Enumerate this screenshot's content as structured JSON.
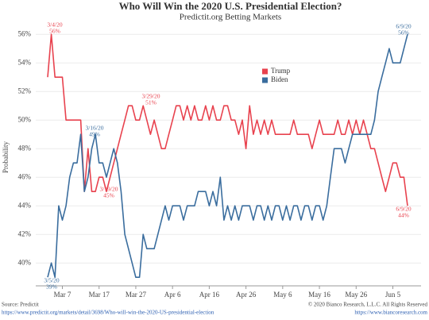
{
  "chart_data": {
    "type": "line",
    "title": "Who Will Win the 2020 U.S. Presidential Election?",
    "subtitle": "Predictit.org Betting Markets",
    "y_label": "Probability",
    "x": [
      "2020-03-03",
      "2020-03-04",
      "2020-03-05",
      "2020-03-06",
      "2020-03-07",
      "2020-03-08",
      "2020-03-09",
      "2020-03-10",
      "2020-03-11",
      "2020-03-12",
      "2020-03-13",
      "2020-03-14",
      "2020-03-15",
      "2020-03-16",
      "2020-03-17",
      "2020-03-18",
      "2020-03-19",
      "2020-03-20",
      "2020-03-21",
      "2020-03-22",
      "2020-03-23",
      "2020-03-24",
      "2020-03-25",
      "2020-03-26",
      "2020-03-27",
      "2020-03-28",
      "2020-03-29",
      "2020-03-30",
      "2020-03-31",
      "2020-04-01",
      "2020-04-02",
      "2020-04-03",
      "2020-04-04",
      "2020-04-05",
      "2020-04-06",
      "2020-04-07",
      "2020-04-08",
      "2020-04-09",
      "2020-04-10",
      "2020-04-11",
      "2020-04-12",
      "2020-04-13",
      "2020-04-14",
      "2020-04-15",
      "2020-04-16",
      "2020-04-17",
      "2020-04-18",
      "2020-04-19",
      "2020-04-20",
      "2020-04-21",
      "2020-04-22",
      "2020-04-23",
      "2020-04-24",
      "2020-04-25",
      "2020-04-26",
      "2020-04-27",
      "2020-04-28",
      "2020-04-29",
      "2020-04-30",
      "2020-05-01",
      "2020-05-02",
      "2020-05-03",
      "2020-05-04",
      "2020-05-05",
      "2020-05-06",
      "2020-05-07",
      "2020-05-08",
      "2020-05-09",
      "2020-05-10",
      "2020-05-11",
      "2020-05-12",
      "2020-05-13",
      "2020-05-14",
      "2020-05-15",
      "2020-05-16",
      "2020-05-17",
      "2020-05-18",
      "2020-05-19",
      "2020-05-20",
      "2020-05-21",
      "2020-05-22",
      "2020-05-23",
      "2020-05-24",
      "2020-05-25",
      "2020-05-26",
      "2020-05-27",
      "2020-05-28",
      "2020-05-29",
      "2020-05-30",
      "2020-05-31",
      "2020-06-01",
      "2020-06-02",
      "2020-06-03",
      "2020-06-04",
      "2020-06-05",
      "2020-06-06",
      "2020-06-07",
      "2020-06-08",
      "2020-06-09"
    ],
    "series": [
      {
        "name": "Trump",
        "color": "#e8424e",
        "values": [
          53,
          56,
          53,
          53,
          53,
          50,
          50,
          50,
          50,
          50,
          45,
          48,
          45,
          45,
          46,
          46,
          45,
          46,
          47,
          48,
          49,
          50,
          51,
          51,
          50,
          50,
          51,
          50,
          49,
          50,
          49,
          48,
          48,
          49,
          50,
          51,
          51,
          50,
          51,
          50,
          51,
          50,
          50,
          51,
          50,
          51,
          50,
          50,
          51,
          51,
          50,
          50,
          49,
          50,
          48,
          51,
          49,
          50,
          49,
          50,
          49,
          50,
          49,
          49,
          49,
          49,
          49,
          50,
          49,
          49,
          49,
          49,
          48,
          49,
          50,
          49,
          49,
          49,
          49,
          50,
          49,
          49,
          50,
          49,
          50,
          49,
          50,
          49,
          48,
          48,
          47,
          46,
          45,
          46,
          47,
          47,
          46,
          46,
          44
        ]
      },
      {
        "name": "Biden",
        "color": "#3a6d9e",
        "values": [
          39,
          40,
          39,
          44,
          43,
          44,
          46,
          47,
          47,
          49,
          45,
          46,
          48,
          49,
          47,
          47,
          46,
          47,
          48,
          47,
          45,
          42,
          41,
          40,
          39,
          39,
          42,
          41,
          41,
          41,
          42,
          43,
          44,
          43,
          44,
          44,
          44,
          43,
          44,
          44,
          44,
          45,
          45,
          45,
          44,
          45,
          44,
          46,
          43,
          44,
          43,
          44,
          43,
          44,
          44,
          44,
          43,
          44,
          44,
          43,
          44,
          43,
          44,
          44,
          43,
          44,
          43,
          44,
          44,
          43,
          44,
          44,
          43,
          44,
          44,
          43,
          44,
          46,
          48,
          48,
          48,
          47,
          48,
          49,
          49,
          49,
          49,
          49,
          49,
          50,
          52,
          53,
          54,
          55,
          54,
          54,
          54,
          55,
          56
        ]
      }
    ],
    "xlim": [
      "2020-03-03",
      "2020-06-09"
    ],
    "xticks": [
      {
        "value": "2020-03-07",
        "label": "Mar 7"
      },
      {
        "value": "2020-03-17",
        "label": "Mar 17"
      },
      {
        "value": "2020-03-27",
        "label": "Mar 27"
      },
      {
        "value": "2020-04-06",
        "label": "Apr 6"
      },
      {
        "value": "2020-04-16",
        "label": "Apr 16"
      },
      {
        "value": "2020-04-26",
        "label": "Apr 26"
      },
      {
        "value": "2020-05-06",
        "label": "May 6"
      },
      {
        "value": "2020-05-16",
        "label": "May 16"
      },
      {
        "value": "2020-05-26",
        "label": "May 26"
      },
      {
        "value": "2020-06-05",
        "label": "Jun 5"
      }
    ],
    "ylim": [
      38.4,
      56.4
    ],
    "yticks": [
      {
        "value": 40,
        "label": "40%"
      },
      {
        "value": 42,
        "label": "42%"
      },
      {
        "value": 44,
        "label": "44%"
      },
      {
        "value": 46,
        "label": "46%"
      },
      {
        "value": 48,
        "label": "48%"
      },
      {
        "value": 50,
        "label": "50%"
      },
      {
        "value": 52,
        "label": "52%"
      },
      {
        "value": 54,
        "label": "54%"
      },
      {
        "value": 56,
        "label": "56%"
      }
    ],
    "grid": true,
    "annotations": [
      {
        "date": "3/4/20",
        "value": "56%"
      },
      {
        "date": "3/5/20",
        "value": "39%"
      },
      {
        "date": "3/16/20",
        "value": "49%"
      },
      {
        "date": "3/19/20",
        "value": "45%"
      },
      {
        "date": "3/29/20",
        "value": "51%"
      },
      {
        "date": "6/9/20",
        "value": "56%"
      },
      {
        "date": "6/9/20",
        "value": "44%"
      }
    ],
    "source": "Source: Predictit",
    "source_url": "https://www.predictit.org/markets/detail/3698/Who-will-win-the-2020-US-presidential-election",
    "copyright": "© 2020 Bianco Research, L.L.C. All Rights Reserved",
    "site_url": "https://www.biancoresearch.com"
  }
}
